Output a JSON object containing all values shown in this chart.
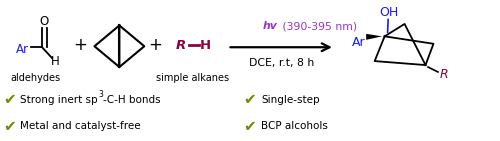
{
  "bg_color": "#ffffff",
  "black": "#000000",
  "blue": "#1a1aff",
  "dark_red": "#8B0040",
  "purple": "#9933cc",
  "check_color": "#6B8E00",
  "hv_text_italic": "hv (390-395 nm)",
  "conditions_text": "DCE, r.t, 8 h",
  "label_aldehydes": "aldehydes",
  "label_alkanes": "simple alkanes",
  "bullet2_left": "Metal and catalyst-free",
  "bullet1_right": "Single-step",
  "bullet2_right": "BCP alcohols",
  "figsize": [
    5.0,
    1.41
  ],
  "dpi": 100
}
